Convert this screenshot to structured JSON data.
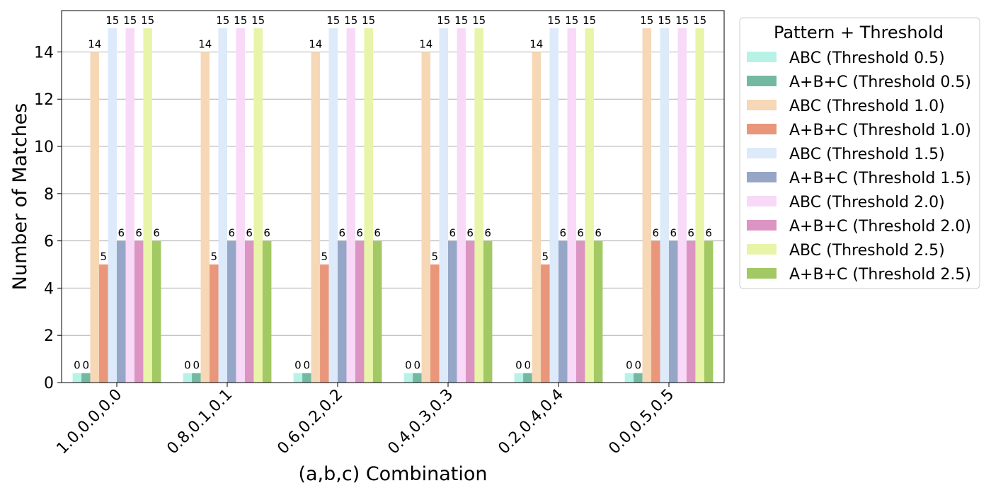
{
  "chart_data": {
    "type": "bar",
    "title": "",
    "xlabel": "(a,b,c) Combination",
    "ylabel": "Number of Matches",
    "ylim": [
      0,
      15.75
    ],
    "yticks": [
      0,
      2,
      4,
      6,
      8,
      10,
      12,
      14
    ],
    "grid": "y",
    "legend_title": "Pattern + Threshold",
    "legend_position": "outside-right",
    "categories": [
      "1.0,0.0,0.0",
      "0.8,0.1,0.1",
      "0.6,0.2,0.2",
      "0.4,0.3,0.3",
      "0.2,0.4,0.4",
      "0.0,0.5,0.5"
    ],
    "series": [
      {
        "name": "ABC (Threshold 0.5)",
        "color": "#b8f2e6",
        "values": [
          0,
          0,
          0,
          0,
          0,
          0
        ]
      },
      {
        "name": "A+B+C (Threshold 0.5)",
        "color": "#73b9a1",
        "values": [
          0,
          0,
          0,
          0,
          0,
          0
        ]
      },
      {
        "name": "ABC (Threshold 1.0)",
        "color": "#f6d7b6",
        "values": [
          14,
          14,
          14,
          14,
          14,
          15
        ]
      },
      {
        "name": "A+B+C (Threshold 1.0)",
        "color": "#e9967a",
        "values": [
          5,
          5,
          5,
          5,
          5,
          6
        ]
      },
      {
        "name": "ABC (Threshold 1.5)",
        "color": "#dceafa",
        "values": [
          15,
          15,
          15,
          15,
          15,
          15
        ]
      },
      {
        "name": "A+B+C (Threshold 1.5)",
        "color": "#96a6c6",
        "values": [
          6,
          6,
          6,
          6,
          6,
          6
        ]
      },
      {
        "name": "ABC (Threshold 2.0)",
        "color": "#f8d9f8",
        "values": [
          15,
          15,
          15,
          15,
          15,
          15
        ]
      },
      {
        "name": "A+B+C (Threshold 2.0)",
        "color": "#dc94c2",
        "values": [
          6,
          6,
          6,
          6,
          6,
          6
        ]
      },
      {
        "name": "ABC (Threshold 2.5)",
        "color": "#e8f4a8",
        "values": [
          15,
          15,
          15,
          15,
          15,
          15
        ]
      },
      {
        "name": "A+B+C (Threshold 2.5)",
        "color": "#a2c963",
        "values": [
          6,
          6,
          6,
          6,
          6,
          6
        ]
      }
    ]
  }
}
